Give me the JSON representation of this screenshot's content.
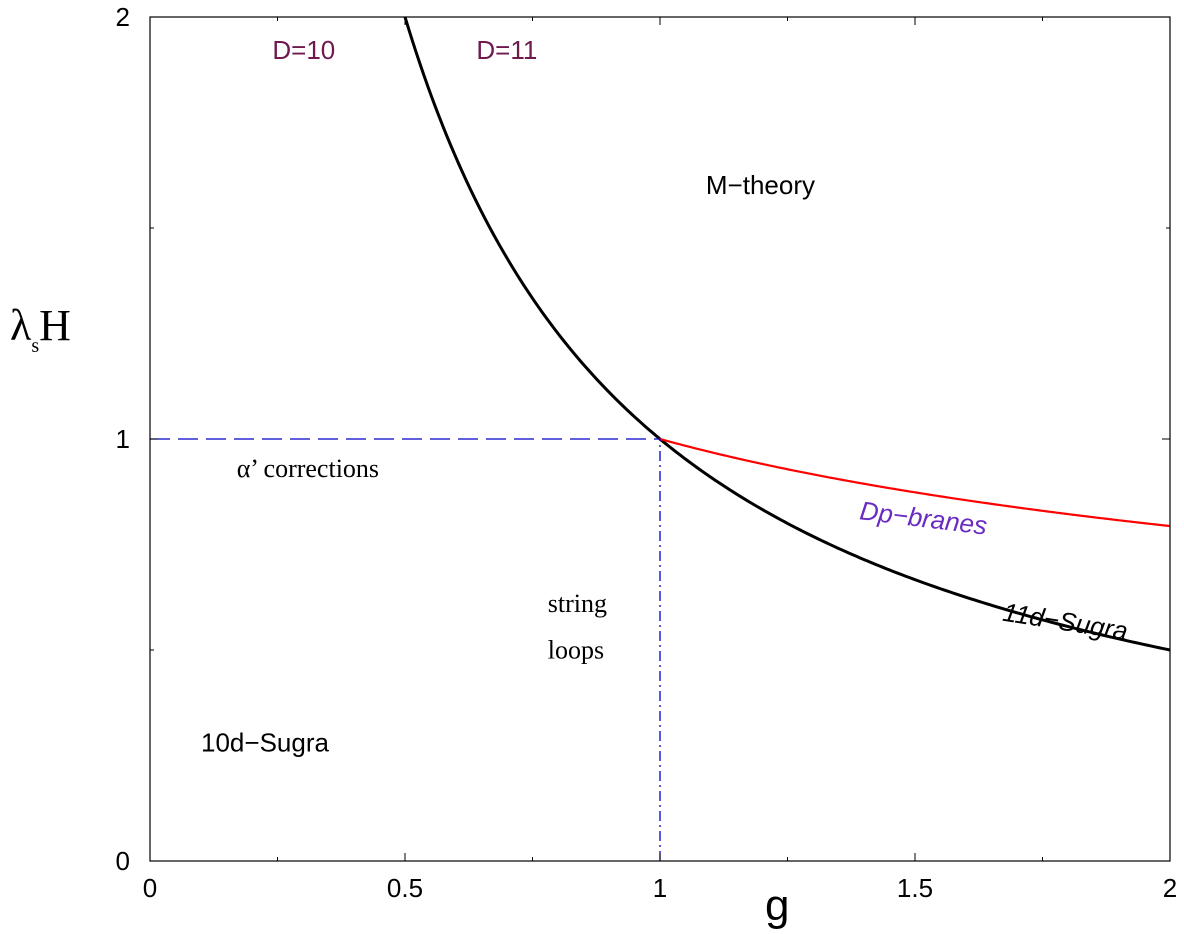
{
  "chart_data": {
    "type": "line",
    "xlabel": "g",
    "ylabel": {
      "main_left": "λ",
      "sub": "s",
      "main_right": "H"
    },
    "xlim": [
      0,
      2
    ],
    "ylim": [
      0,
      2
    ],
    "x_ticks": [
      "0",
      "0.5",
      "1",
      "1.5",
      "2"
    ],
    "y_ticks": [
      "0",
      "1",
      "2"
    ],
    "series": [
      {
        "name": "11d−Sugra",
        "color": "#000000",
        "style": "solid",
        "function": "y = 1/g",
        "x": [
          0.5,
          0.6,
          0.7,
          0.8,
          0.9,
          1.0,
          1.2,
          1.4,
          1.6,
          1.8,
          2.0
        ],
        "y": [
          2.0,
          1.667,
          1.429,
          1.25,
          1.111,
          1.0,
          0.833,
          0.714,
          0.625,
          0.556,
          0.5
        ]
      },
      {
        "name": "Dp−branes",
        "color": "#ff0000",
        "style": "solid",
        "function": "y = g^(-1/3)",
        "x": [
          1.0,
          1.2,
          1.4,
          1.6,
          1.8,
          2.0
        ],
        "y": [
          1.0,
          0.941,
          0.894,
          0.855,
          0.822,
          0.794
        ]
      },
      {
        "name": "",
        "color": "#0000cc",
        "style": "dashed",
        "x": [
          0,
          1
        ],
        "y": [
          1,
          1
        ]
      },
      {
        "name": "",
        "color": "#0000cc",
        "style": "dashdot",
        "x": [
          1,
          1
        ],
        "y": [
          0,
          1
        ]
      }
    ],
    "annotations": [
      {
        "text": "D=10",
        "x": 0.24,
        "y": 1.9,
        "color": "#6e1a4e",
        "font": "sans"
      },
      {
        "text": "D=11",
        "x": 0.64,
        "y": 1.9,
        "color": "#6e1a4e",
        "font": "sans"
      },
      {
        "text": "M−theory",
        "x": 1.09,
        "y": 1.58,
        "color": "#000000",
        "font": "sans"
      },
      {
        "text": "α’ corrections",
        "x": 0.17,
        "y": 0.91,
        "color": "#000000",
        "font": "serif"
      },
      {
        "text": "Dp−branes",
        "x": 1.39,
        "y": 0.81,
        "color": "#6a2bc2",
        "font": "sans",
        "italic": true,
        "rotate": 7
      },
      {
        "text": "string",
        "x": 0.78,
        "y": 0.59,
        "color": "#000000",
        "font": "serif"
      },
      {
        "text": "loops",
        "x": 0.78,
        "y": 0.48,
        "color": "#000000",
        "font": "serif"
      },
      {
        "text": "11d−Sugra",
        "x": 1.67,
        "y": 0.57,
        "color": "#000000",
        "font": "sans",
        "italic": true,
        "rotate": 9
      },
      {
        "text": "10d−Sugra",
        "x": 0.1,
        "y": 0.26,
        "color": "#000000",
        "font": "sans"
      }
    ]
  }
}
